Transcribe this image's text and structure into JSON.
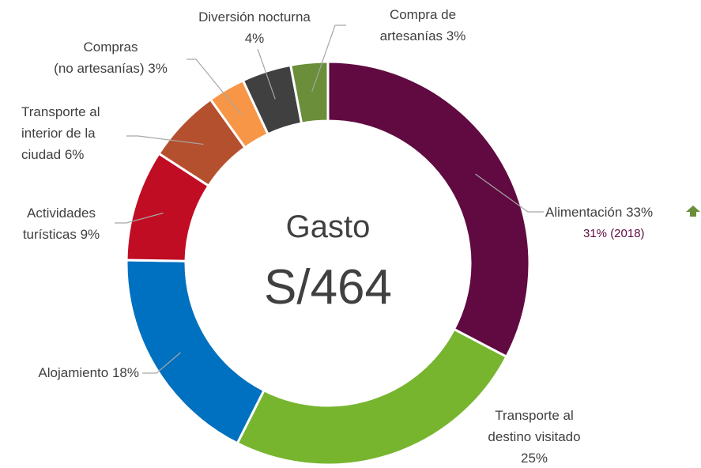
{
  "chart_data": {
    "type": "donut",
    "center_label": "Gasto",
    "center_value": "S/464",
    "categories": [
      "Alimentación",
      "Transporte al\ndestino visitado",
      "Alojamiento",
      "Actividades\nturísticas",
      "Transporte al\ninterior de la\nciudad",
      "Compras\n(no artesanías)",
      "Diversión nocturna",
      "Compra de\nartesanías"
    ],
    "values": [
      33,
      25,
      18,
      9,
      6,
      3,
      4,
      3
    ],
    "value_labels": [
      "33%",
      "25%",
      "18%",
      "9%",
      "6%",
      "3%",
      "4%",
      "3%"
    ],
    "colors": [
      "#600a41",
      "#77b52f",
      "#0070c0",
      "#c00d24",
      "#b5502f",
      "#f79646",
      "#404040",
      "#6b8e3a"
    ],
    "annotation": "31% (2018)"
  }
}
